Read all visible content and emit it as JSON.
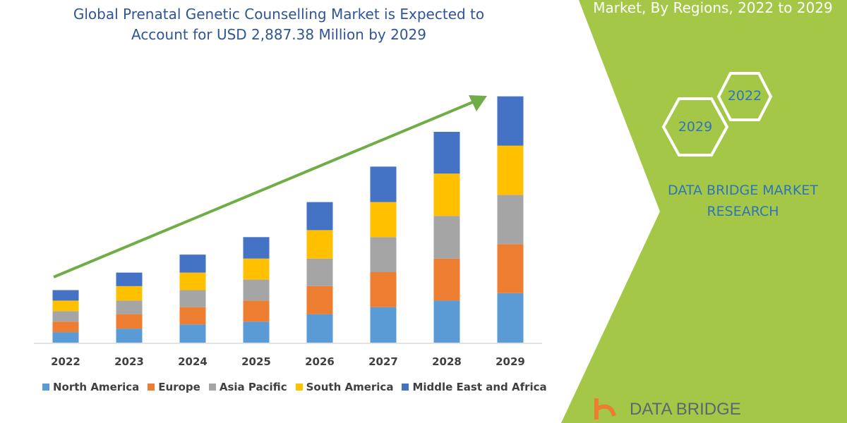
{
  "header": {
    "title_line1": "Global Prenatal Genetic Counselling Market is Expected to",
    "title_line2": "Account for USD 2,887.38 Million by 2029",
    "subtitle": "Market, By Regions, 2022 to 2029"
  },
  "side_panel": {
    "hex_years": [
      "2022",
      "2029"
    ],
    "brand_line1": "DATA BRIDGE MARKET",
    "brand_line2": "RESEARCH",
    "logo_text": "DATA BRIDGE",
    "accent_color": "#A5C748"
  },
  "chart_data": {
    "type": "bar",
    "stacked": true,
    "categories": [
      "2022",
      "2023",
      "2024",
      "2025",
      "2026",
      "2027",
      "2028",
      "2029"
    ],
    "series": [
      {
        "name": "North America",
        "color": "#5B9BD5",
        "values": [
          4.5,
          6.0,
          7.8,
          9.0,
          12.2,
          15.2,
          18.0,
          21.2
        ]
      },
      {
        "name": "Europe",
        "color": "#ED7D31",
        "values": [
          4.5,
          6.2,
          7.4,
          9.0,
          12.0,
          15.0,
          18.0,
          21.0
        ]
      },
      {
        "name": "Asia Pacific",
        "color": "#A5A5A5",
        "values": [
          4.5,
          5.8,
          7.3,
          9.0,
          11.8,
          15.0,
          18.3,
          21.1
        ]
      },
      {
        "name": "South America",
        "color": "#FFC000",
        "values": [
          4.5,
          6.2,
          7.5,
          9.0,
          12.2,
          15.0,
          18.1,
          21.1
        ]
      },
      {
        "name": "Middle East and Africa",
        "color": "#4472C4",
        "values": [
          4.5,
          5.8,
          7.7,
          9.2,
          12.0,
          15.2,
          17.9,
          21.1
        ]
      }
    ],
    "ylim": [
      0,
      106
    ],
    "legend_position": "bottom",
    "grid": false,
    "trend_arrow_color": "#70AD47"
  }
}
